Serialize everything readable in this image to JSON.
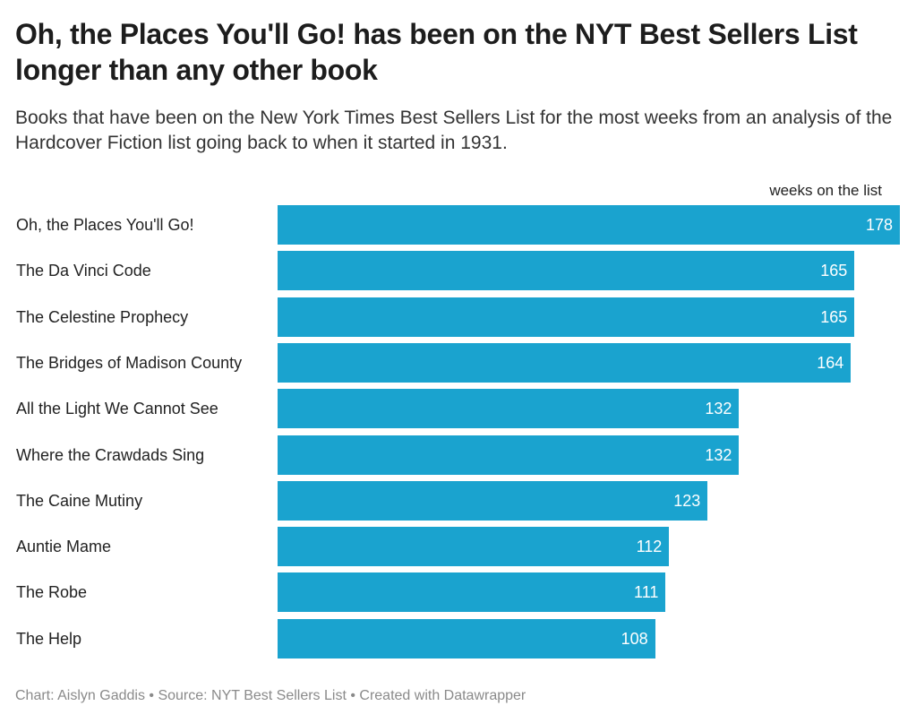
{
  "chart_data": {
    "type": "bar",
    "orientation": "horizontal",
    "title": "Oh, the Places You'll Go! has been on the NYT Best Sellers List longer than any other book",
    "subtitle": "Books that have been on the New York Times Best Sellers List for the most weeks from an analysis of the Hardcover Fiction list going back to when it started in 1931.",
    "value_label": "weeks on the list",
    "categories": [
      "Oh, the Places You'll Go!",
      "The Da Vinci Code",
      "The Celestine Prophecy",
      "The Bridges of Madison County",
      "All the Light We Cannot See",
      "Where the Crawdads Sing",
      "The Caine Mutiny",
      "Auntie Mame",
      "The Robe",
      "The Help"
    ],
    "values": [
      178,
      165,
      165,
      164,
      132,
      132,
      123,
      112,
      111,
      108
    ],
    "xlim": [
      0,
      178
    ],
    "grid": false,
    "bar_color": "#1aa3cf"
  },
  "footer": "Chart: Aislyn Gaddis • Source: NYT Best Sellers List • Created with Datawrapper"
}
